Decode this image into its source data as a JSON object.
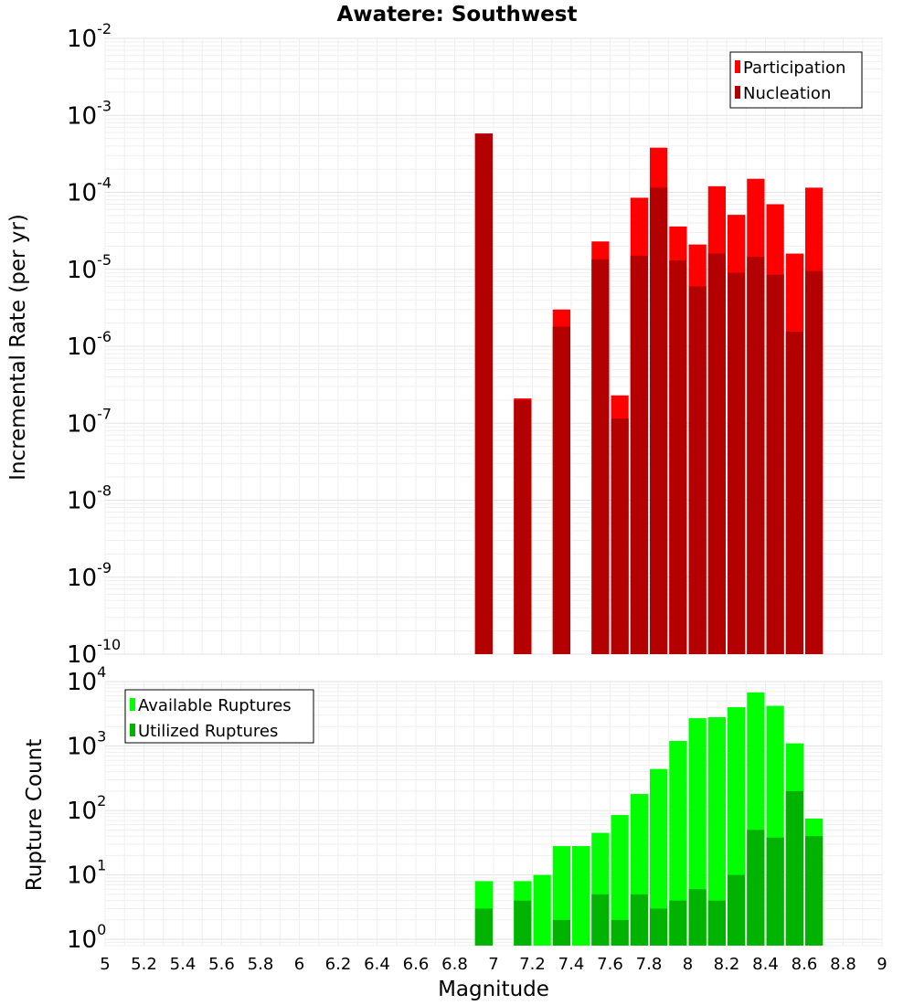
{
  "chart_data": {
    "title": "Awatere: Southwest",
    "xlabel": "Magnitude",
    "x_ticks": [
      "5",
      "5.2",
      "5.4",
      "5.6",
      "5.8",
      "6",
      "6.2",
      "6.4",
      "6.6",
      "6.8",
      "7",
      "7.2",
      "7.4",
      "7.6",
      "7.8",
      "8",
      "8.2",
      "8.4",
      "8.6",
      "8.8",
      "9"
    ],
    "xlim": [
      5,
      9
    ],
    "bin_width": 0.1,
    "panels": [
      {
        "type": "bar",
        "ylabel": "Incremental Rate (per yr)",
        "yscale": "log",
        "ylim": [
          1e-10,
          0.01
        ],
        "y_tick_exponents": [
          "-10",
          "-9",
          "-8",
          "-7",
          "-6",
          "-5",
          "-4",
          "-3",
          "-2"
        ],
        "grid": true,
        "legend_position": "top-right",
        "series": [
          {
            "name": "Participation",
            "color": "#ff0000",
            "x": [
              6.95,
              7.15,
              7.35,
              7.55,
              7.65,
              7.75,
              7.85,
              7.95,
              8.05,
              8.15,
              8.25,
              8.35,
              8.45,
              8.55,
              8.65
            ],
            "values": [
              0.00058,
              2.1e-07,
              3e-06,
              2.3e-05,
              2.3e-07,
              8.5e-05,
              0.00038,
              3.6e-05,
              2.1e-05,
              0.00012,
              5.1e-05,
              0.00015,
              7e-05,
              1.6e-05,
              0.000115
            ]
          },
          {
            "name": "Nucleation",
            "color": "#b30000",
            "x": [
              6.95,
              7.15,
              7.35,
              7.55,
              7.65,
              7.75,
              7.85,
              7.95,
              8.05,
              8.15,
              8.25,
              8.35,
              8.45,
              8.55,
              8.65
            ],
            "values": [
              0.00058,
              2e-07,
              1.8e-06,
              1.35e-05,
              1.15e-07,
              1.5e-05,
              0.000115,
              1.3e-05,
              6e-06,
              1.6e-05,
              9e-06,
              1.45e-05,
              8.5e-06,
              1.55e-06,
              9.5e-06
            ]
          }
        ]
      },
      {
        "type": "bar",
        "ylabel": "Rupture Count",
        "yscale": "log",
        "ylim": [
          0.8,
          10000
        ],
        "y_tick_exponents": [
          "0",
          "1",
          "2",
          "3",
          "4"
        ],
        "grid": true,
        "legend_position": "top-left",
        "series": [
          {
            "name": "Available Ruptures",
            "color": "#00ff00",
            "x": [
              6.95,
              7.15,
              7.25,
              7.35,
              7.45,
              7.55,
              7.65,
              7.75,
              7.85,
              7.95,
              8.05,
              8.15,
              8.25,
              8.35,
              8.45,
              8.55,
              8.65
            ],
            "values": [
              8,
              8,
              10,
              28,
              28,
              45,
              85,
              180,
              440,
              1200,
              2700,
              2800,
              4000,
              6800,
              4200,
              1100,
              75
            ]
          },
          {
            "name": "Utilized Ruptures",
            "color": "#00b300",
            "x": [
              6.95,
              7.15,
              7.25,
              7.35,
              7.45,
              7.55,
              7.65,
              7.75,
              7.85,
              7.95,
              8.05,
              8.15,
              8.25,
              8.35,
              8.45,
              8.55,
              8.65
            ],
            "values": [
              3,
              4,
              0,
              2,
              0,
              5,
              2,
              5,
              3,
              4,
              6,
              4,
              10,
              50,
              38,
              200,
              40
            ]
          }
        ]
      }
    ]
  }
}
